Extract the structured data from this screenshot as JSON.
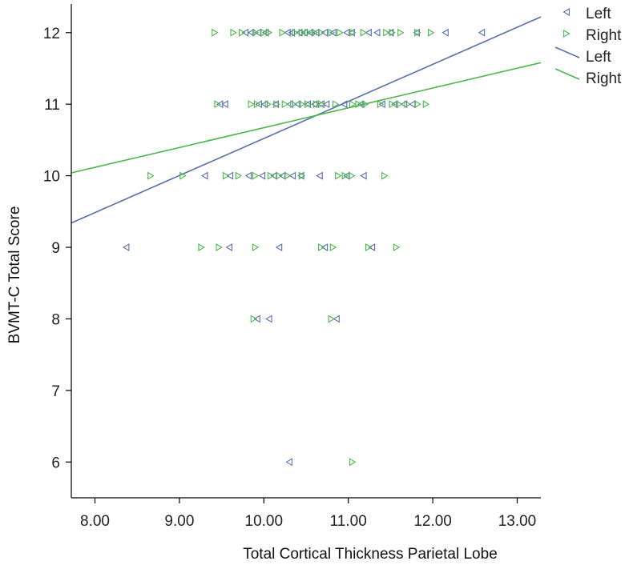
{
  "chart_data": {
    "type": "scatter",
    "xlabel": "Total Cortical Thickness Parietal Lobe",
    "ylabel": "BVMT-C Total Score",
    "xlim": [
      7.72,
      13.28
    ],
    "ylim": [
      5.5,
      12.4
    ],
    "x_ticks": [
      8,
      9,
      10,
      11,
      12,
      13
    ],
    "x_tick_labels": [
      "8.00",
      "9.00",
      "10.00",
      "11.00",
      "12.00",
      "13.00"
    ],
    "y_ticks": [
      6,
      7,
      8,
      9,
      10,
      11,
      12
    ],
    "y_tick_labels": [
      "6",
      "7",
      "8",
      "9",
      "10",
      "11",
      "12"
    ],
    "grid": false,
    "legend_position": "top-right",
    "colors": {
      "left": "#5b6fb0",
      "right": "#4cb84c",
      "axis": "#000000"
    },
    "series": [
      {
        "name": "Left",
        "marker": "left-triangle",
        "color": "#5b6fb0",
        "points": [
          [
            9.78,
            12
          ],
          [
            9.85,
            12
          ],
          [
            9.93,
            12
          ],
          [
            10.02,
            12
          ],
          [
            10.28,
            12
          ],
          [
            10.33,
            12
          ],
          [
            10.42,
            12
          ],
          [
            10.48,
            12
          ],
          [
            10.55,
            12
          ],
          [
            10.62,
            12
          ],
          [
            10.72,
            12
          ],
          [
            10.82,
            12
          ],
          [
            10.98,
            12
          ],
          [
            11.04,
            12
          ],
          [
            11.24,
            12
          ],
          [
            11.34,
            12
          ],
          [
            11.5,
            12
          ],
          [
            11.81,
            12
          ],
          [
            12.15,
            12
          ],
          [
            12.58,
            12
          ],
          [
            9.48,
            11
          ],
          [
            9.54,
            11
          ],
          [
            9.94,
            11
          ],
          [
            10.01,
            11
          ],
          [
            10.14,
            11
          ],
          [
            10.31,
            11
          ],
          [
            10.4,
            11
          ],
          [
            10.52,
            11
          ],
          [
            10.6,
            11
          ],
          [
            10.68,
            11
          ],
          [
            10.74,
            11
          ],
          [
            10.95,
            11
          ],
          [
            11.15,
            11
          ],
          [
            11.4,
            11
          ],
          [
            11.55,
            11
          ],
          [
            11.66,
            11
          ],
          [
            11.76,
            11
          ],
          [
            9.3,
            10
          ],
          [
            9.6,
            10
          ],
          [
            9.82,
            10
          ],
          [
            9.98,
            10
          ],
          [
            10.12,
            10
          ],
          [
            10.22,
            10
          ],
          [
            10.34,
            10
          ],
          [
            10.44,
            10
          ],
          [
            10.66,
            10
          ],
          [
            10.98,
            10
          ],
          [
            11.18,
            10
          ],
          [
            8.37,
            9
          ],
          [
            9.59,
            9
          ],
          [
            10.18,
            9
          ],
          [
            10.72,
            9
          ],
          [
            11.28,
            9
          ],
          [
            9.92,
            8
          ],
          [
            10.06,
            8
          ],
          [
            10.86,
            8
          ],
          [
            10.3,
            6
          ]
        ],
        "fit_line": {
          "x": [
            7.72,
            13.28
          ],
          "y": [
            9.34,
            12.22
          ]
        }
      },
      {
        "name": "Right",
        "marker": "right-triangle",
        "color": "#4cb84c",
        "points": [
          [
            9.42,
            12
          ],
          [
            9.64,
            12
          ],
          [
            9.74,
            12
          ],
          [
            9.9,
            12
          ],
          [
            10.0,
            12
          ],
          [
            10.06,
            12
          ],
          [
            10.22,
            12
          ],
          [
            10.37,
            12
          ],
          [
            10.45,
            12
          ],
          [
            10.52,
            12
          ],
          [
            10.6,
            12
          ],
          [
            10.68,
            12
          ],
          [
            10.8,
            12
          ],
          [
            10.9,
            12
          ],
          [
            11.05,
            12
          ],
          [
            11.18,
            12
          ],
          [
            11.45,
            12
          ],
          [
            11.52,
            12
          ],
          [
            11.62,
            12
          ],
          [
            11.82,
            12
          ],
          [
            11.98,
            12
          ],
          [
            9.45,
            11
          ],
          [
            9.85,
            11
          ],
          [
            9.92,
            11
          ],
          [
            10.05,
            11
          ],
          [
            10.15,
            11
          ],
          [
            10.25,
            11
          ],
          [
            10.35,
            11
          ],
          [
            10.45,
            11
          ],
          [
            10.52,
            11
          ],
          [
            10.62,
            11
          ],
          [
            10.68,
            11
          ],
          [
            10.85,
            11
          ],
          [
            11.05,
            11
          ],
          [
            11.12,
            11
          ],
          [
            11.2,
            11
          ],
          [
            11.38,
            11
          ],
          [
            11.52,
            11
          ],
          [
            11.6,
            11
          ],
          [
            11.7,
            11
          ],
          [
            11.82,
            11
          ],
          [
            11.92,
            11
          ],
          [
            8.66,
            10
          ],
          [
            9.04,
            10
          ],
          [
            9.55,
            10
          ],
          [
            9.7,
            10
          ],
          [
            9.9,
            10
          ],
          [
            10.08,
            10
          ],
          [
            10.18,
            10
          ],
          [
            10.28,
            10
          ],
          [
            10.45,
            10
          ],
          [
            10.88,
            10
          ],
          [
            10.96,
            10
          ],
          [
            11.04,
            10
          ],
          [
            11.43,
            10
          ],
          [
            9.26,
            9
          ],
          [
            9.47,
            9
          ],
          [
            9.9,
            9
          ],
          [
            10.68,
            9
          ],
          [
            10.82,
            9
          ],
          [
            11.24,
            9
          ],
          [
            11.57,
            9
          ],
          [
            9.88,
            8
          ],
          [
            10.8,
            8
          ],
          [
            11.05,
            6
          ]
        ],
        "fit_line": {
          "x": [
            7.72,
            13.28
          ],
          "y": [
            10.04,
            11.58
          ]
        }
      }
    ],
    "legend": {
      "entries": [
        {
          "label": "Left",
          "kind": "marker",
          "series": "Left"
        },
        {
          "label": "Right",
          "kind": "marker",
          "series": "Right"
        },
        {
          "label": "Left",
          "kind": "line",
          "series": "Left"
        },
        {
          "label": "Right",
          "kind": "line",
          "series": "Right"
        }
      ]
    }
  }
}
